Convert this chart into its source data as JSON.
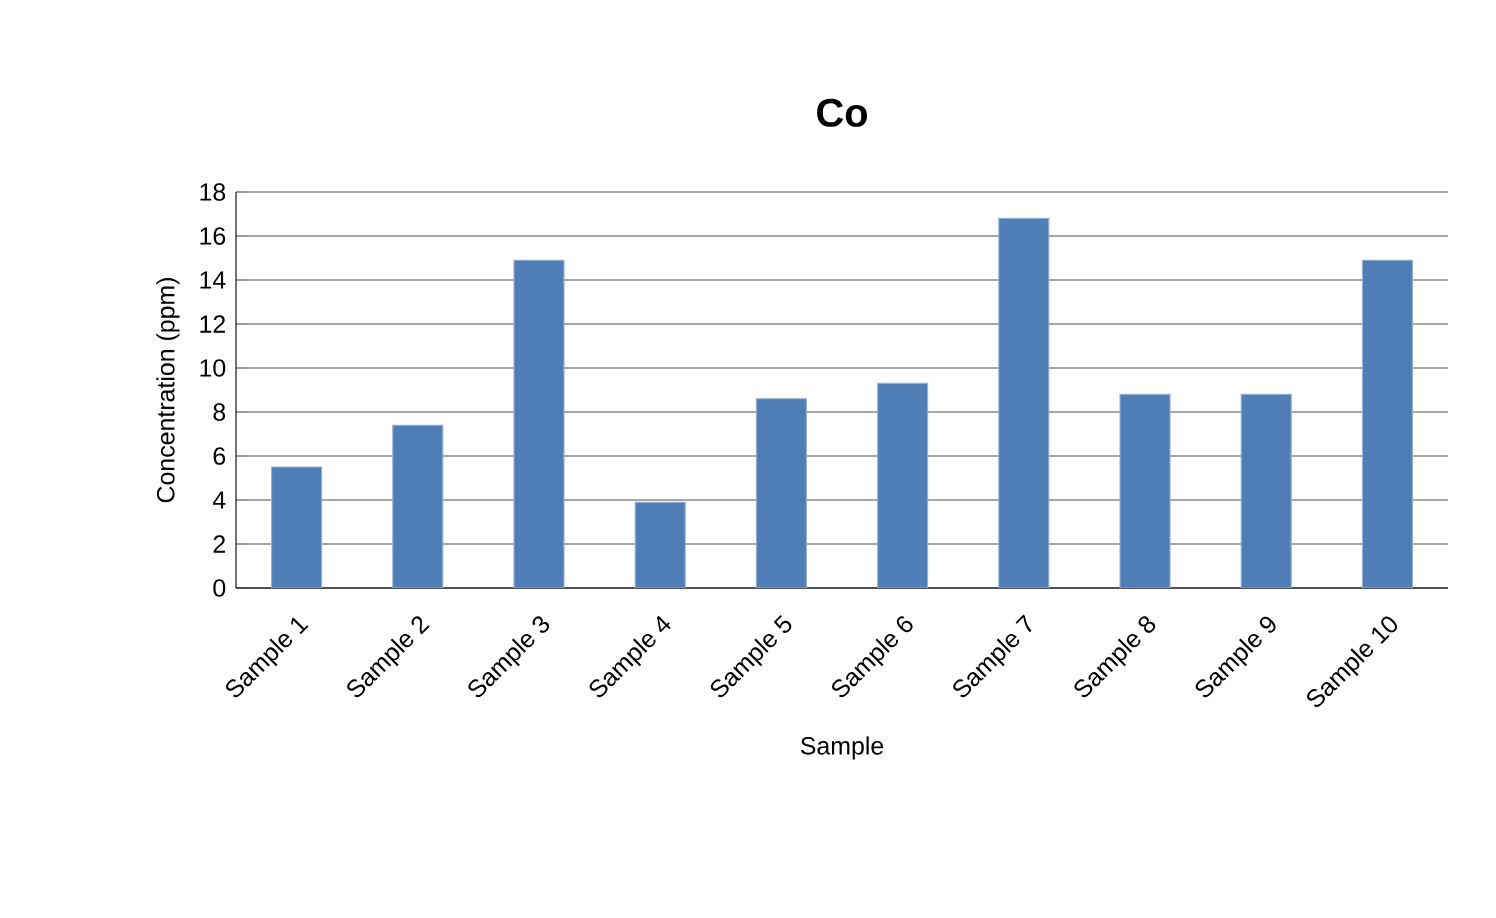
{
  "chart_data": {
    "type": "bar",
    "title": "Co",
    "xlabel": "Sample",
    "ylabel": "Concentration (ppm)",
    "categories": [
      "Sample 1",
      "Sample 2",
      "Sample 3",
      "Sample 4",
      "Sample 5",
      "Sample 6",
      "Sample 7",
      "Sample 8",
      "Sample 9",
      "Sample 10"
    ],
    "values": [
      5.5,
      7.4,
      14.9,
      3.9,
      8.6,
      9.3,
      16.8,
      8.8,
      8.8,
      14.9
    ],
    "color": "#4f7db5",
    "ylim": [
      0,
      18
    ],
    "yticks": [
      0,
      2,
      4,
      6,
      8,
      10,
      12,
      14,
      16,
      18
    ],
    "grid": "y"
  }
}
